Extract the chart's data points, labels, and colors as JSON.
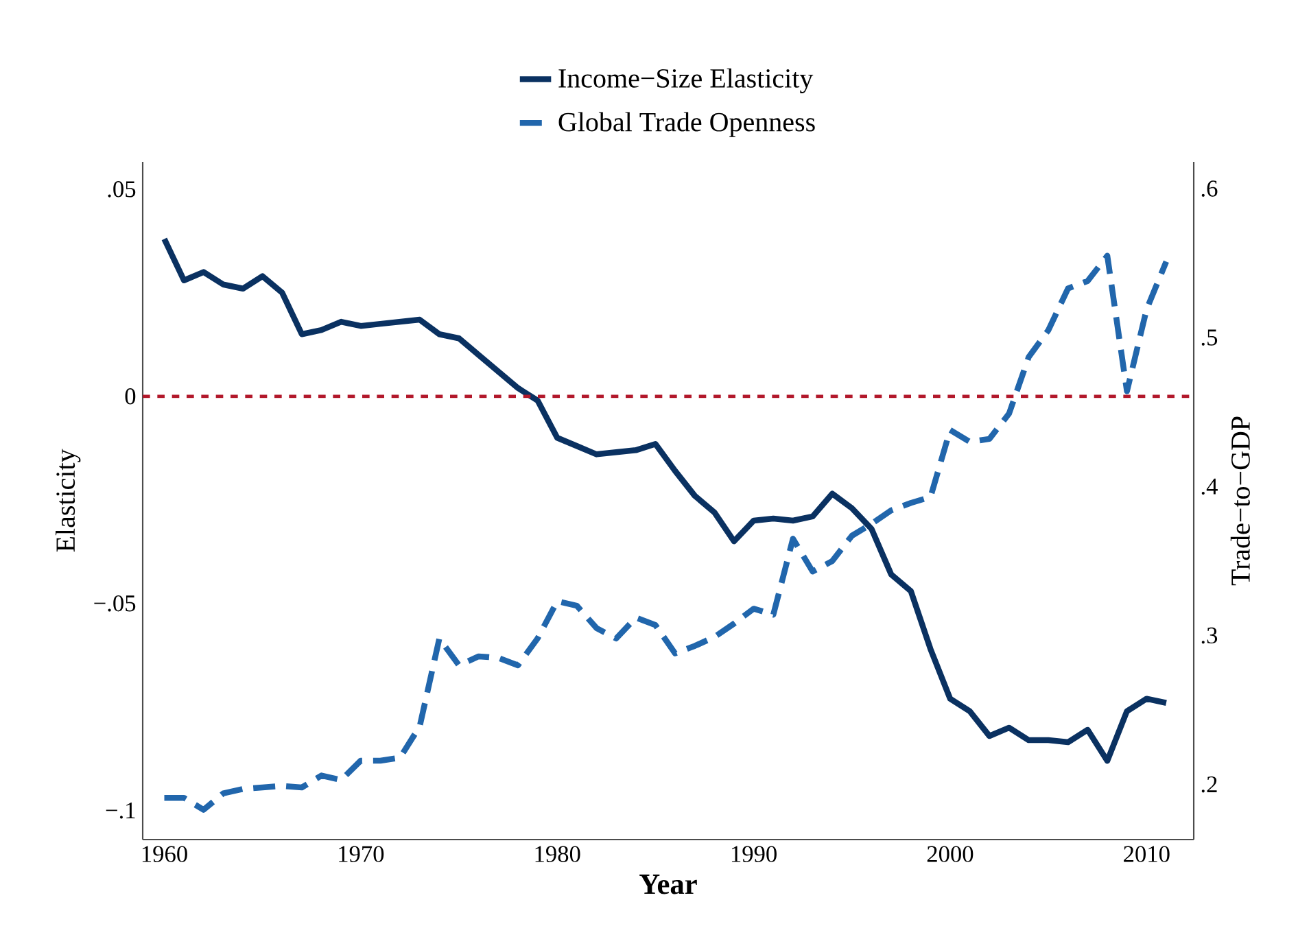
{
  "chart_data": {
    "type": "line",
    "xlabel": "Year",
    "ylabel": "Elasticity",
    "y2label": "Trade−to−GDP",
    "legend": "top",
    "x": [
      1960,
      1961,
      1962,
      1963,
      1964,
      1965,
      1966,
      1967,
      1968,
      1969,
      1970,
      1971,
      1972,
      1973,
      1974,
      1975,
      1976,
      1977,
      1978,
      1979,
      1980,
      1981,
      1982,
      1983,
      1984,
      1985,
      1986,
      1987,
      1988,
      1989,
      1990,
      1991,
      1992,
      1993,
      1994,
      1995,
      1996,
      1997,
      1998,
      1999,
      2000,
      2001,
      2002,
      2003,
      2004,
      2005,
      2006,
      2007,
      2008,
      2009,
      2010,
      2011
    ],
    "series": [
      {
        "name": "Income−Size Elasticity",
        "color": "#0a3161",
        "line_style": "solid",
        "values": [
          0.038,
          0.028,
          0.03,
          0.027,
          0.026,
          0.029,
          0.025,
          0.015,
          0.016,
          0.018,
          0.017,
          0.0175,
          0.018,
          0.0185,
          0.015,
          0.014,
          0.01,
          0.006,
          0.002,
          -0.001,
          -0.01,
          -0.012,
          -0.014,
          -0.0135,
          -0.013,
          -0.0115,
          -0.018,
          -0.024,
          -0.028,
          -0.035,
          -0.03,
          -0.0295,
          -0.03,
          -0.029,
          -0.0235,
          -0.027,
          -0.032,
          -0.043,
          -0.047,
          -0.061,
          -0.073,
          -0.076,
          -0.082,
          -0.08,
          -0.083,
          -0.083,
          -0.0835,
          -0.0805,
          -0.088,
          -0.076,
          -0.073,
          -0.074
        ]
      },
      {
        "name": "Global Trade Openness",
        "color": "#2166ac",
        "line_style": "dashed",
        "axis": "y2",
        "values": [
          0.191,
          0.191,
          0.183,
          0.194,
          0.197,
          0.198,
          0.199,
          0.198,
          0.206,
          0.203,
          0.216,
          0.216,
          0.218,
          0.239,
          0.298,
          0.28,
          0.286,
          0.285,
          0.28,
          0.298,
          0.323,
          0.32,
          0.305,
          0.298,
          0.312,
          0.307,
          0.288,
          0.293,
          0.299,
          0.308,
          0.318,
          0.314,
          0.365,
          0.343,
          0.35,
          0.367,
          0.375,
          0.384,
          0.389,
          0.393,
          0.438,
          0.43,
          0.432,
          0.449,
          0.487,
          0.505,
          0.533,
          0.538,
          0.555,
          0.464,
          0.519,
          0.551
        ]
      }
    ],
    "xlim": [
      1958.9,
      2012.4
    ],
    "xticks": [
      1960,
      1970,
      1980,
      1990,
      2000,
      2010
    ],
    "ylim": [
      -0.107,
      0.0566
    ],
    "yticks": [
      {
        "value": -0.1,
        "label": "−.1"
      },
      {
        "value": -0.05,
        "label": "−.05"
      },
      {
        "value": 0,
        "label": "0"
      },
      {
        "value": 0.05,
        "label": ".05"
      }
    ],
    "y2lim": [
      0.163,
      0.618
    ],
    "y2ticks": [
      {
        "value": 0.2,
        "label": ".2"
      },
      {
        "value": 0.3,
        "label": ".3"
      },
      {
        "value": 0.4,
        "label": ".4"
      },
      {
        "value": 0.5,
        "label": ".5"
      },
      {
        "value": 0.6,
        "label": ".6"
      }
    ],
    "ref_lines": [
      {
        "axis": "y",
        "value": 0,
        "color": "#b2182b",
        "line_style": "dotted"
      }
    ]
  }
}
